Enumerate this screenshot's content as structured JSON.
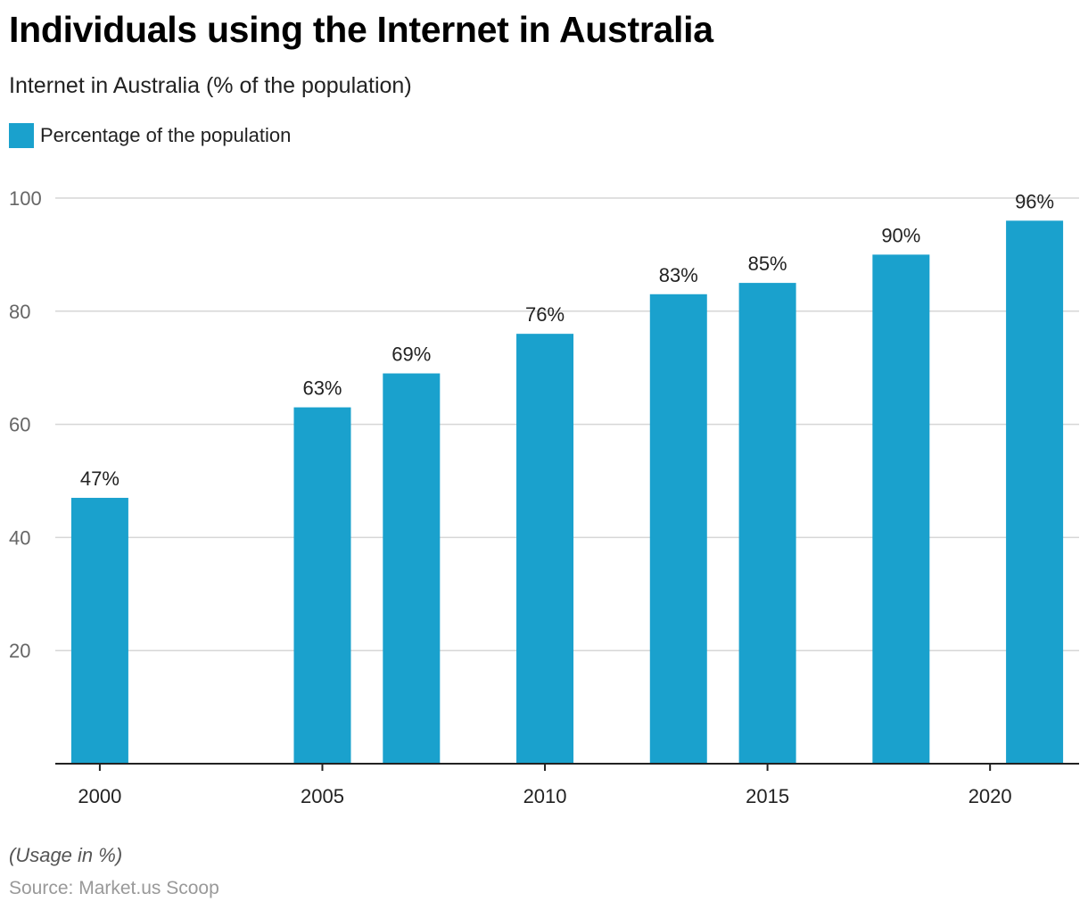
{
  "title": "Individuals using the Internet in Australia",
  "subtitle": "Internet in Australia (% of the population)",
  "legend": {
    "label": "Percentage of the population",
    "color": "#1aa1cd"
  },
  "note": "(Usage in %)",
  "source": "Source: Market.us Scoop",
  "chart_data": {
    "type": "bar",
    "title": "Individuals using the Internet in Australia",
    "subtitle": "Internet in Australia (% of the population)",
    "xlabel": "",
    "ylabel": "",
    "x": [
      2000,
      2005,
      2007,
      2010,
      2013,
      2015,
      2018,
      2021
    ],
    "values": [
      47,
      63,
      69,
      76,
      83,
      85,
      90,
      96
    ],
    "labels": [
      "47%",
      "63%",
      "69%",
      "76%",
      "83%",
      "85%",
      "90%",
      "96%"
    ],
    "series": [
      {
        "name": "Percentage of the population",
        "values": [
          47,
          63,
          69,
          76,
          83,
          85,
          90,
          96
        ]
      }
    ],
    "xlim": [
      1999,
      2022
    ],
    "ylim": [
      0,
      100
    ],
    "x_ticks": [
      "2000",
      "2005",
      "2010",
      "2015",
      "2020"
    ],
    "y_ticks": [
      "20",
      "40",
      "60",
      "80",
      "100"
    ],
    "grid": true,
    "legend_position": "top-left",
    "bar_color": "#1aa1cd"
  }
}
